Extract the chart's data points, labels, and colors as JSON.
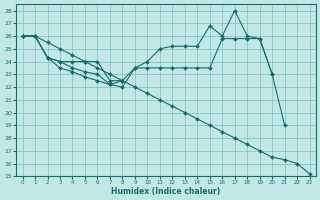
{
  "xlabel": "Humidex (Indice chaleur)",
  "bg_color": "#c2e8e5",
  "grid_color": "#7fbfbc",
  "line_color": "#1a6b6b",
  "xlim": [
    -0.5,
    23.5
  ],
  "ylim": [
    15,
    28.5
  ],
  "xticks": [
    0,
    1,
    2,
    3,
    4,
    5,
    6,
    7,
    8,
    9,
    10,
    11,
    12,
    13,
    14,
    15,
    16,
    17,
    18,
    19,
    20,
    21,
    22,
    23
  ],
  "yticks": [
    15,
    16,
    17,
    18,
    19,
    20,
    21,
    22,
    23,
    24,
    25,
    26,
    27,
    28
  ],
  "lines": [
    {
      "x": [
        0,
        1,
        2,
        3,
        4,
        5,
        6,
        7,
        8,
        9,
        10,
        11,
        12,
        13,
        14,
        15,
        16,
        17,
        18,
        19,
        20,
        21,
        22,
        23
      ],
      "y": [
        26,
        26,
        25.5,
        25,
        24.5,
        24,
        23.5,
        23,
        22.5,
        22,
        21.5,
        21,
        20.5,
        20,
        19.5,
        19,
        18.5,
        18,
        17.5,
        17,
        16.5,
        16.3,
        16,
        15.2
      ]
    },
    {
      "x": [
        0,
        1,
        2,
        3,
        4,
        5,
        6,
        7,
        8,
        9,
        10,
        11,
        12,
        13,
        14,
        15,
        16,
        17,
        18,
        19,
        20,
        21
      ],
      "y": [
        26,
        26,
        24.3,
        24,
        24,
        24,
        24,
        22.5,
        22.5,
        23.5,
        24,
        25,
        25.2,
        25.2,
        25.2,
        26.8,
        26,
        28,
        26,
        25.8,
        23,
        19
      ]
    },
    {
      "x": [
        0,
        1,
        2,
        3,
        4,
        5,
        6,
        7,
        8,
        9,
        10,
        11,
        12,
        13,
        14,
        15,
        16,
        17,
        18,
        19,
        20
      ],
      "y": [
        26,
        26,
        24.3,
        24,
        23.5,
        23.2,
        23,
        22.2,
        22,
        23.5,
        23.5,
        23.5,
        23.5,
        23.5,
        23.5,
        23.5,
        25.8,
        25.8,
        25.8,
        25.8,
        23
      ]
    },
    {
      "x": [
        0,
        1,
        2,
        3,
        4,
        5,
        6,
        7,
        8
      ],
      "y": [
        26,
        26,
        24.3,
        23.5,
        23.2,
        22.8,
        22.5,
        22.2,
        22.5
      ]
    }
  ]
}
